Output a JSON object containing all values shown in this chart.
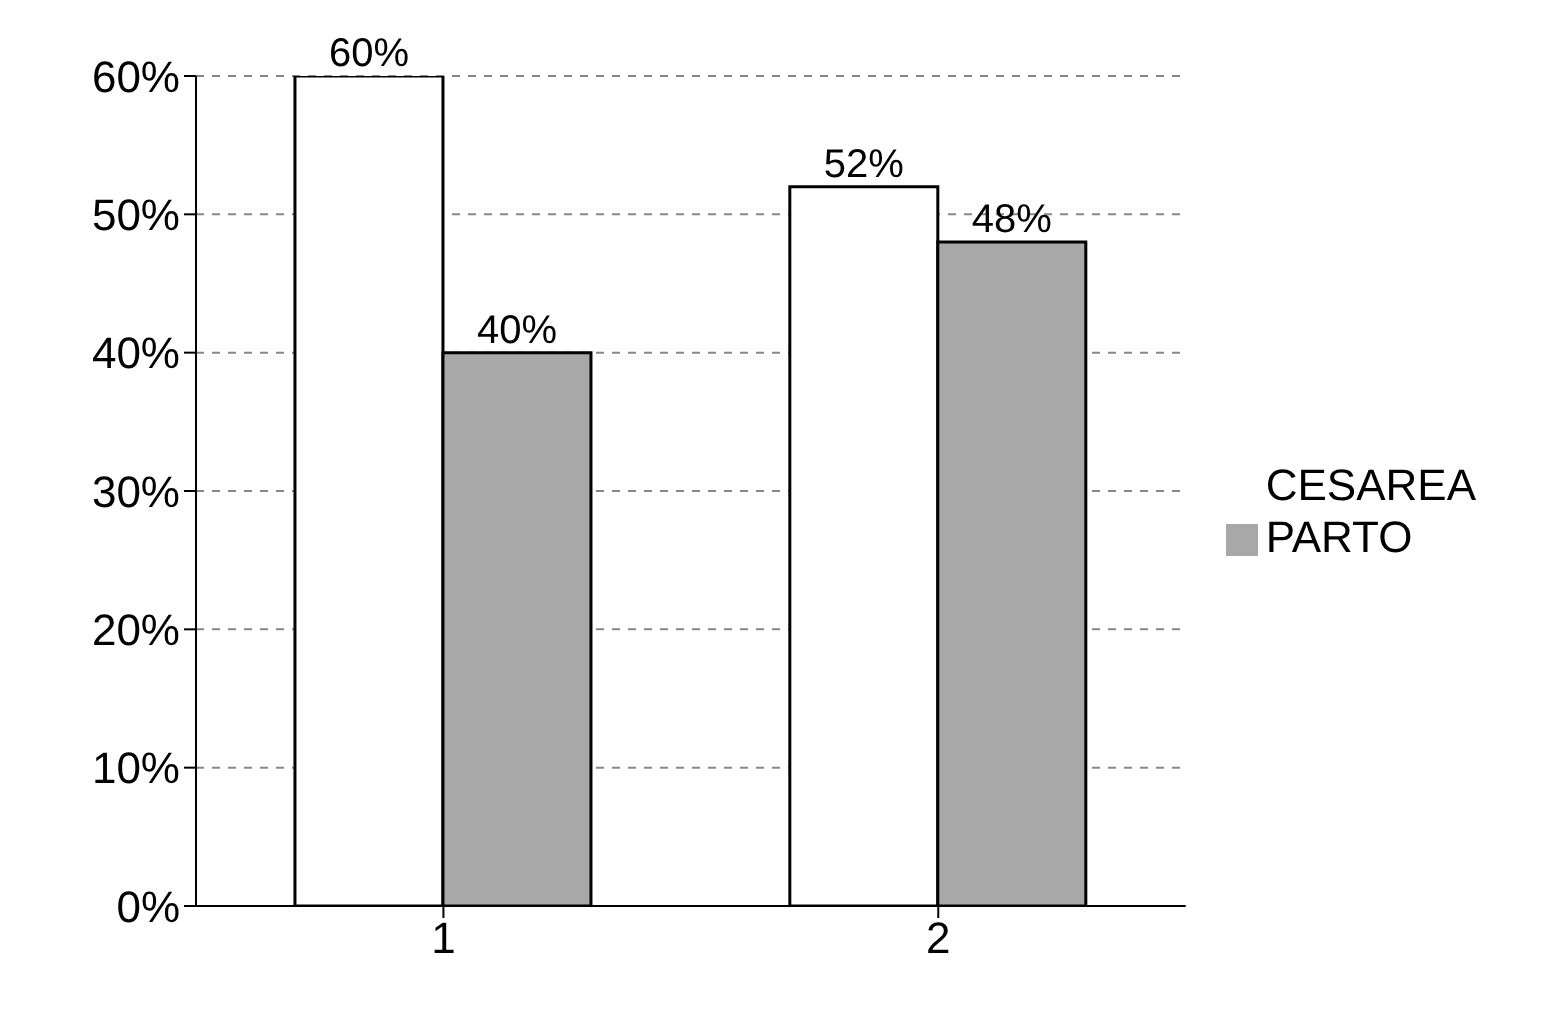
{
  "chart_data": {
    "type": "bar",
    "categories": [
      "1",
      "2"
    ],
    "series": [
      {
        "name": "CESAREA",
        "color": "#ffffff",
        "values": [
          60,
          52
        ],
        "value_labels": [
          "60%",
          "52%"
        ]
      },
      {
        "name": "PARTO",
        "color": "#a8a8a8",
        "values": [
          40,
          48
        ],
        "value_labels": [
          "40%",
          "48%"
        ]
      }
    ],
    "ylim": [
      0,
      60
    ],
    "yticks": [
      {
        "value": 0,
        "label": "0%"
      },
      {
        "value": 10,
        "label": "10%"
      },
      {
        "value": 20,
        "label": "20%"
      },
      {
        "value": 30,
        "label": "30%"
      },
      {
        "value": 40,
        "label": "40%"
      },
      {
        "value": 50,
        "label": "50%"
      },
      {
        "value": 60,
        "label": "60%"
      }
    ],
    "grid": "y",
    "legend": "right"
  }
}
